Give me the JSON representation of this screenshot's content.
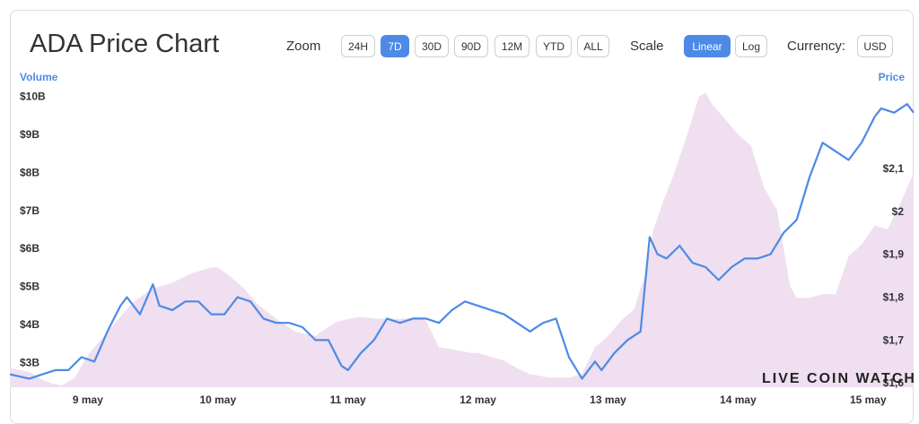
{
  "header": {
    "title": "ADA Price Chart",
    "zoom_label": "Zoom",
    "zoom_options": [
      "24H",
      "7D",
      "30D",
      "90D",
      "12M",
      "YTD",
      "ALL"
    ],
    "zoom_selected": "7D",
    "scale_label": "Scale",
    "scale_options": [
      "Linear",
      "Log"
    ],
    "scale_selected": "Linear",
    "currency_label": "Currency:",
    "currency_value": "USD"
  },
  "colors": {
    "price_line": "#4d8ae6",
    "volume_fill": "#efdff0",
    "accent": "#4d8ae6"
  },
  "watermark": "LIVE COIN WATCH",
  "chart_data": {
    "type": "line",
    "left_axis_title": "Volume",
    "right_axis_title": "Price",
    "left_ticks": [
      "$3B",
      "$4B",
      "$5B",
      "$6B",
      "$7B",
      "$8B",
      "$9B",
      "$10B"
    ],
    "left_tick_values": [
      3,
      4,
      5,
      6,
      7,
      8,
      9,
      10
    ],
    "right_ticks": [
      "$1,6",
      "$1,7",
      "$1,8",
      "$1,9",
      "$2",
      "$2,1"
    ],
    "right_tick_values": [
      1.6,
      1.7,
      1.8,
      1.9,
      2.0,
      2.1
    ],
    "x_ticks": [
      "9 may",
      "10 may",
      "11 may",
      "12 may",
      "13 may",
      "14 may",
      "15 may"
    ],
    "x_tick_positions": [
      1,
      2,
      3,
      4,
      5,
      6,
      7
    ],
    "xlim": [
      0.4,
      7.35
    ],
    "volume_ylim": [
      2.35,
      10.25
    ],
    "price_ylim": [
      1.59,
      2.29
    ],
    "series": [
      {
        "name": "Volume",
        "x": [
          0.4,
          0.55,
          0.65,
          0.72,
          0.8,
          0.9,
          1.0,
          1.1,
          1.2,
          1.35,
          1.5,
          1.65,
          1.8,
          1.95,
          2.0,
          2.1,
          2.2,
          2.3,
          2.45,
          2.6,
          2.75,
          2.9,
          3.0,
          3.1,
          3.25,
          3.4,
          3.55,
          3.6,
          3.7,
          3.8,
          3.95,
          4.0,
          4.1,
          4.2,
          4.3,
          4.4,
          4.55,
          4.7,
          4.8,
          4.9,
          5.0,
          5.1,
          5.2,
          5.3,
          5.35,
          5.42,
          5.5,
          5.6,
          5.7,
          5.75,
          5.8,
          5.9,
          6.0,
          6.1,
          6.2,
          6.3,
          6.4,
          6.45,
          6.55,
          6.65,
          6.75,
          6.85,
          6.95,
          7.05,
          7.15,
          7.25,
          7.35
        ],
        "values": [
          2.85,
          2.75,
          2.55,
          2.45,
          2.4,
          2.6,
          3.2,
          3.6,
          4.0,
          4.6,
          4.95,
          5.1,
          5.35,
          5.5,
          5.5,
          5.25,
          4.95,
          4.55,
          4.15,
          3.8,
          3.7,
          4.05,
          4.15,
          4.2,
          4.15,
          4.15,
          4.2,
          4.1,
          3.4,
          3.35,
          3.25,
          3.25,
          3.15,
          3.05,
          2.85,
          2.7,
          2.6,
          2.6,
          2.7,
          3.4,
          3.7,
          4.1,
          4.4,
          5.5,
          6.5,
          7.2,
          7.9,
          8.9,
          10.0,
          10.1,
          9.8,
          9.4,
          9.0,
          8.7,
          7.6,
          7.0,
          5.0,
          4.7,
          4.7,
          4.8,
          4.8,
          5.8,
          6.1,
          6.6,
          6.5,
          7.2,
          8.0
        ]
      },
      {
        "name": "Price",
        "x": [
          0.4,
          0.55,
          0.65,
          0.75,
          0.85,
          0.95,
          1.05,
          1.15,
          1.25,
          1.3,
          1.4,
          1.5,
          1.55,
          1.65,
          1.75,
          1.85,
          1.95,
          2.05,
          2.15,
          2.25,
          2.35,
          2.45,
          2.55,
          2.65,
          2.75,
          2.85,
          2.95,
          3.0,
          3.1,
          3.2,
          3.3,
          3.4,
          3.5,
          3.6,
          3.7,
          3.8,
          3.9,
          4.0,
          4.1,
          4.2,
          4.3,
          4.4,
          4.5,
          4.6,
          4.7,
          4.8,
          4.9,
          4.95,
          5.05,
          5.15,
          5.25,
          5.32,
          5.38,
          5.45,
          5.55,
          5.65,
          5.75,
          5.85,
          5.95,
          6.05,
          6.15,
          6.25,
          6.35,
          6.45,
          6.55,
          6.65,
          6.75,
          6.85,
          6.95,
          7.05,
          7.1,
          7.2,
          7.3,
          7.35
        ],
        "values": [
          1.62,
          1.61,
          1.62,
          1.63,
          1.63,
          1.66,
          1.65,
          1.72,
          1.78,
          1.8,
          1.76,
          1.83,
          1.78,
          1.77,
          1.79,
          1.79,
          1.76,
          1.76,
          1.8,
          1.79,
          1.75,
          1.74,
          1.74,
          1.73,
          1.7,
          1.7,
          1.64,
          1.63,
          1.67,
          1.7,
          1.75,
          1.74,
          1.75,
          1.75,
          1.74,
          1.77,
          1.79,
          1.78,
          1.77,
          1.76,
          1.74,
          1.72,
          1.74,
          1.75,
          1.66,
          1.61,
          1.65,
          1.63,
          1.67,
          1.7,
          1.72,
          1.94,
          1.9,
          1.89,
          1.92,
          1.88,
          1.87,
          1.84,
          1.87,
          1.89,
          1.89,
          1.9,
          1.95,
          1.98,
          2.08,
          2.16,
          2.14,
          2.12,
          2.16,
          2.22,
          2.24,
          2.23,
          2.25,
          2.23
        ]
      }
    ]
  }
}
